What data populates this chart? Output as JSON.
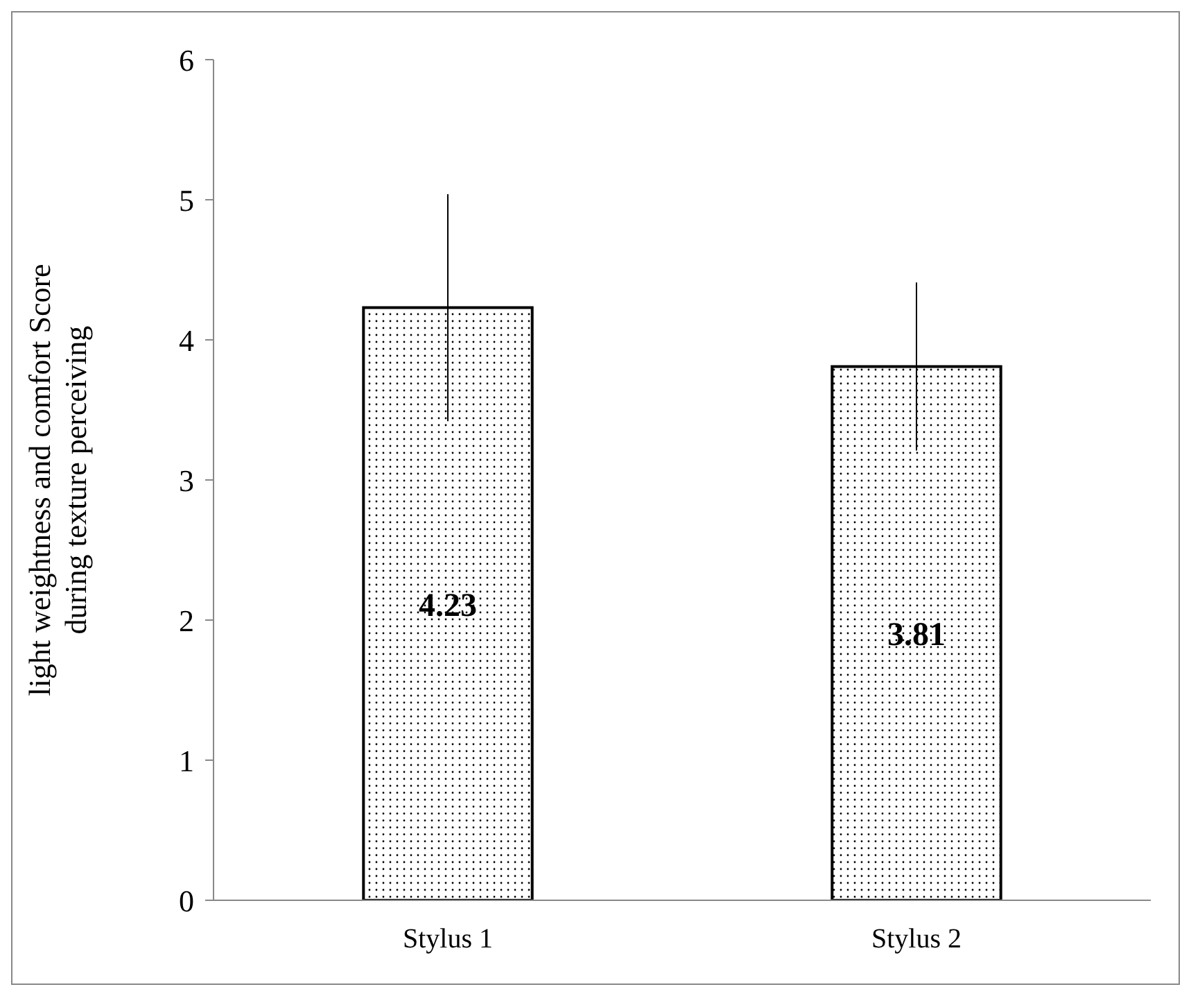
{
  "chart_data": {
    "type": "bar",
    "ylabel": "light weightness and comfort Score during texture perceiving",
    "categories": [
      "Stylus 1",
      "Stylus 2"
    ],
    "values": [
      4.23,
      3.81
    ],
    "errors": [
      0.81,
      0.6
    ],
    "color": "#000000",
    "ylim": [
      0,
      6
    ],
    "yticks": [
      0,
      1,
      2,
      3,
      4,
      5,
      6
    ],
    "grid": false,
    "data_labels": true
  }
}
